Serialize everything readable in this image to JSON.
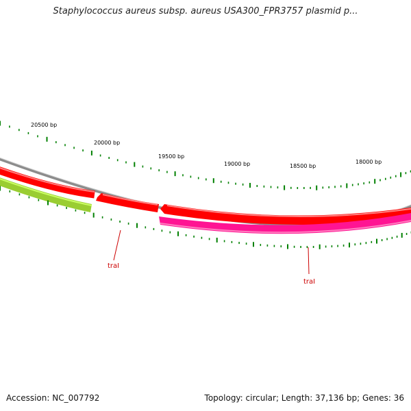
{
  "title": "Staphylococcus aureus subsp. aureus USA300_FPR3757 plasmid p...",
  "footer": {
    "accession": "Accession: NC_007792",
    "topology": "Topology: circular; Length: 37,136 bp; Genes: 36"
  },
  "ruler": {
    "labels": [
      "20500 bp",
      "20000 bp",
      "19500 bp",
      "19000 bp",
      "18500 bp",
      "18000 bp"
    ]
  },
  "genes": [
    {
      "label": "traI",
      "strand": "forward",
      "color": "#ff0000"
    },
    {
      "label": "traI",
      "strand": "reverse",
      "color": "#ff1493"
    }
  ],
  "colors": {
    "backbone": "#8c8c8c",
    "forward_gene": "#ff0000",
    "forward_gene_neighbor": "#ff0000",
    "reverse_gene": "#ff1493",
    "reverse_gene_neighbor": "#9acd32",
    "tick": "#008000",
    "label_line": "#cc0000"
  }
}
